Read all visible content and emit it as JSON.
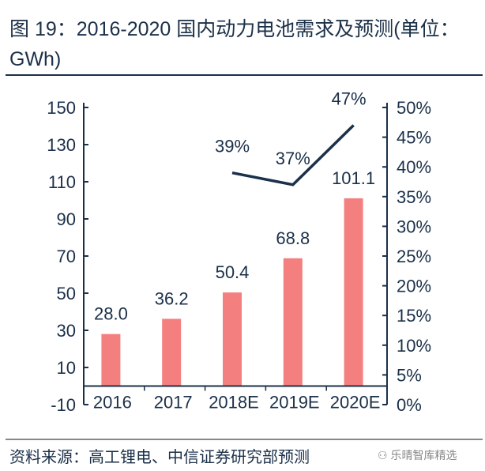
{
  "title": "图 19：2016-2020 国内动力电池需求及预测(单位：GWh)",
  "source": "资料来源：高工锂电、中信证券研究部预测",
  "watermark": "乐晴智库精选",
  "chart_data": {
    "type": "bar+line",
    "categories": [
      "2016",
      "2017",
      "2018E",
      "2019E",
      "2020E"
    ],
    "series": [
      {
        "type": "bar",
        "axis": "left",
        "values": [
          28.0,
          36.2,
          50.4,
          68.8,
          101.1
        ],
        "labels": [
          "28.0",
          "36.2",
          "50.4",
          "68.8",
          "101.1"
        ],
        "color": "#f47f7f"
      },
      {
        "type": "line",
        "axis": "right",
        "values": [
          null,
          null,
          0.39,
          0.37,
          0.47
        ],
        "labels": [
          "",
          "",
          "39%",
          "37%",
          "47%"
        ],
        "color": "#1b3049"
      }
    ],
    "left_axis": {
      "ylim": [
        -10,
        150
      ],
      "ticks": [
        "150",
        "130",
        "110",
        "90",
        "70",
        "50",
        "30",
        "10",
        "-10"
      ],
      "tick_values": [
        150,
        130,
        110,
        90,
        70,
        50,
        30,
        10,
        -10
      ]
    },
    "right_axis": {
      "ylim": [
        0,
        0.5
      ],
      "ticks": [
        "50%",
        "45%",
        "40%",
        "35%",
        "30%",
        "25%",
        "20%",
        "15%",
        "10%",
        "5%",
        "0%"
      ],
      "tick_values": [
        0.5,
        0.45,
        0.4,
        0.35,
        0.3,
        0.25,
        0.2,
        0.15,
        0.1,
        0.05,
        0
      ]
    },
    "grid": false,
    "legend": "none"
  }
}
